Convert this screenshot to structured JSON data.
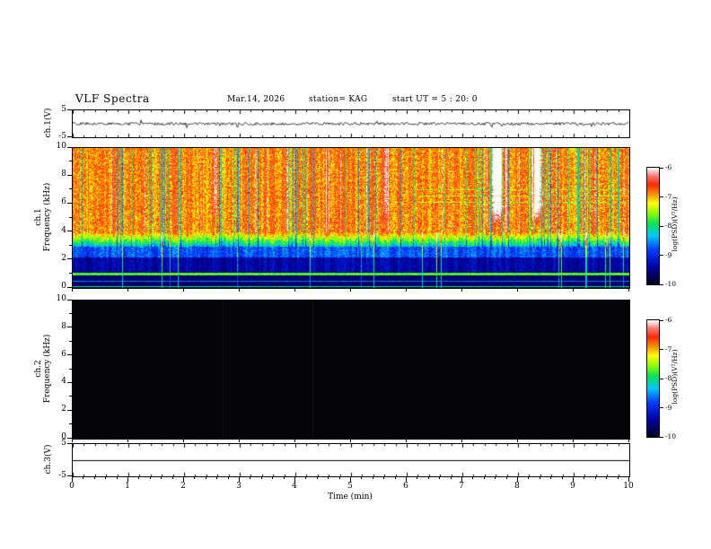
{
  "header": {
    "title": "VLF Spectra",
    "date": "Mar.14, 2026",
    "station": "station= KAG",
    "start_ut": "start UT =  5 : 20: 0"
  },
  "xaxis": {
    "label": "Time (min)",
    "ticks": [
      "0",
      "1",
      "2",
      "3",
      "4",
      "5",
      "6",
      "7",
      "8",
      "9",
      "10"
    ],
    "range_min": [
      0,
      10
    ]
  },
  "chart_data": [
    {
      "type": "line",
      "panel": "ch1-waveform",
      "ylabel": "ch.1(V)",
      "ylim": [
        -5,
        5
      ],
      "yticks": [
        "5",
        "-5"
      ],
      "xlim": [
        0,
        10
      ],
      "description": "Low-amplitude noisy voltage trace fluctuating tightly around 0 V for the full 10 minutes"
    },
    {
      "type": "heatmap",
      "panel": "ch1-spectrogram",
      "ylabel_channel": "ch.1",
      "ylabel_axis": "Frequency (kHz)",
      "ylim": [
        0,
        10
      ],
      "yticks": [
        "10",
        "8",
        "6",
        "4",
        "2",
        "0"
      ],
      "xlim": [
        0,
        10
      ],
      "colorbar": {
        "label": "log(PSD)(V²/Hz)",
        "ticks": [
          "-6",
          "-7",
          "-8",
          "-9",
          "-10"
        ],
        "range": [
          -6,
          -10
        ]
      },
      "description": "Intense broadband VLF activity: red/orange band 4-10 kHz with dense vertical striations, near-white bursts around 7.6 and 8.3 min, yellow-green transition 3-4 kHz, blue/cyan speckle 2-3 kHz, dark navy below 2 kHz with narrow cyan horizontal lines near 1 kHz, 0.5 kHz and just above 0 kHz"
    },
    {
      "type": "heatmap",
      "panel": "ch2-spectrogram",
      "ylabel_channel": "ch.2",
      "ylabel_axis": "Frequency (kHz)",
      "ylim": [
        0,
        10
      ],
      "yticks": [
        "10",
        "8",
        "6",
        "4",
        "2",
        "0"
      ],
      "xlim": [
        0,
        10
      ],
      "colorbar": {
        "label": "log(PSD)(V²/Hz)",
        "ticks": [
          "-6",
          "-7",
          "-8",
          "-9",
          "-10"
        ],
        "range": [
          -6,
          -10
        ]
      },
      "description": "No signal: panel uniformly black (at or below -10 floor) with only faint vertical artifacts"
    },
    {
      "type": "line",
      "panel": "ch3-waveform",
      "ylabel": "ch.3(V)",
      "ylim": [
        -5,
        5
      ],
      "yticks": [
        "5",
        "-5"
      ],
      "xlim": [
        0,
        10
      ],
      "description": "Perfectly flat line at 0 V"
    }
  ]
}
